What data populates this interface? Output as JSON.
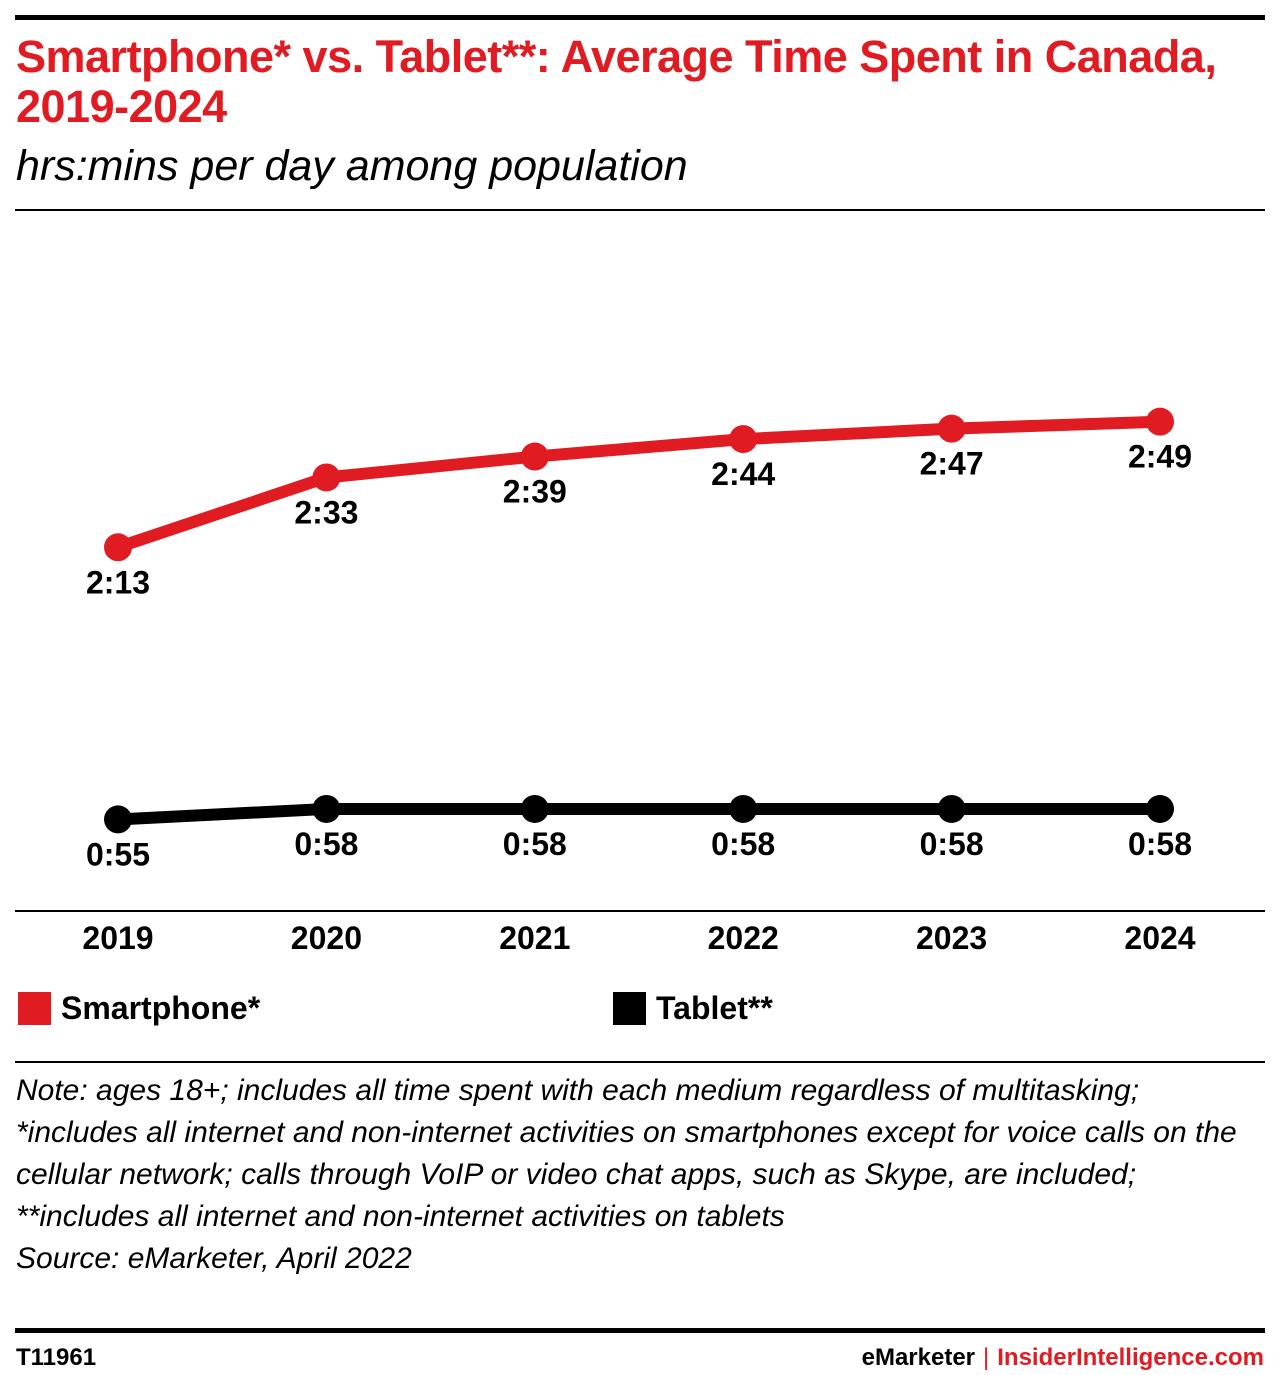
{
  "header": {
    "title": "Smartphone* vs. Tablet**: Average Time Spent in Canada, 2019-2024",
    "subtitle": "hrs:mins per day among population"
  },
  "colors": {
    "smartphone": "#e11b22",
    "tablet": "#000000",
    "accent": "#e11b22"
  },
  "chart_data": {
    "type": "line",
    "title": "Smartphone* vs. Tablet**: Average Time Spent in Canada, 2019-2024",
    "subtitle": "hrs:mins per day among population",
    "x": [
      "2019",
      "2020",
      "2021",
      "2022",
      "2023",
      "2024"
    ],
    "series": [
      {
        "name": "Smartphone*",
        "color": "#e11b22",
        "values": [
          133,
          153,
          159,
          164,
          167,
          169
        ],
        "labels": [
          "2:13",
          "2:33",
          "2:39",
          "2:44",
          "2:47",
          "2:49"
        ]
      },
      {
        "name": "Tablet**",
        "color": "#000000",
        "values": [
          55,
          58,
          58,
          58,
          58,
          58
        ],
        "labels": [
          "0:55",
          "0:58",
          "0:58",
          "0:58",
          "0:58",
          "0:58"
        ]
      }
    ],
    "y_unit": "minutes per day",
    "y_axis_shown": false,
    "grid": false,
    "legend_position": "bottom"
  },
  "legend": [
    {
      "label": "Smartphone*",
      "color": "#e11b22"
    },
    {
      "label": "Tablet**",
      "color": "#000000"
    }
  ],
  "footer": {
    "note": "Note: ages 18+; includes all time spent with each medium regardless of multitasking; *includes all internet and non-internet activities on smartphones except for voice calls on the cellular network; calls through VoIP or video chat apps, such as Skype, are included; **includes all internet and non-internet activities on tablets",
    "source": "Source: eMarketer, April 2022",
    "chart_id": "T11961",
    "brand": "eMarketer",
    "separator": "|",
    "brand2": "InsiderIntelligence.com"
  }
}
